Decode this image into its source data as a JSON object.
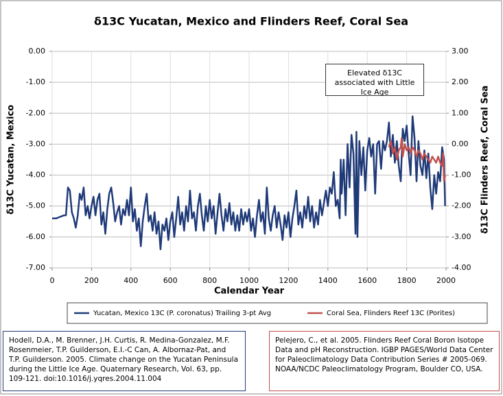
{
  "chart_data": {
    "type": "line",
    "title": "δ13C Yucatan, Mexico and Flinders Reef, Coral Sea",
    "x_label": "Calendar Year",
    "y_label": "δ13C Yucatan, Mexico",
    "y2_label": "δ13C Flinders Reef, Coral Sea",
    "annotation": "Elevated δ13C associated with Little Ice Age",
    "xlim": [
      0,
      2000
    ],
    "xticks": [
      0,
      200,
      400,
      600,
      800,
      1000,
      1200,
      1400,
      1600,
      1800,
      2000
    ],
    "ylim": [
      -7,
      0
    ],
    "yticks": [
      {
        "value": 0,
        "label": "0.00"
      },
      {
        "value": -1,
        "label": "-1.00"
      },
      {
        "value": -2,
        "label": "-2.00"
      },
      {
        "value": -3,
        "label": "-3.00"
      },
      {
        "value": -4,
        "label": "-4.00"
      },
      {
        "value": -5,
        "label": "-5.00"
      },
      {
        "value": -6,
        "label": "-6.00"
      },
      {
        "value": -7,
        "label": "-7.00"
      }
    ],
    "y2lim": [
      -4,
      3
    ],
    "y2ticks": [
      {
        "value": 3,
        "label": "3.00"
      },
      {
        "value": 2,
        "label": "2.00"
      },
      {
        "value": 1,
        "label": "1.00"
      },
      {
        "value": 0,
        "label": "0.00"
      },
      {
        "value": -1,
        "label": "-1.00"
      },
      {
        "value": -2,
        "label": "-2.00"
      },
      {
        "value": -3,
        "label": "-3.00"
      },
      {
        "value": -4,
        "label": "-4.00"
      }
    ],
    "grid": true,
    "series": [
      {
        "name": "Yucatan, Mexico 13C (P. coronatus) Trailing 3-pt Avg",
        "color": "#1f3a78",
        "axis": "y",
        "x": [
          0,
          20,
          40,
          60,
          70,
          80,
          90,
          100,
          110,
          120,
          130,
          140,
          150,
          160,
          170,
          180,
          190,
          200,
          210,
          220,
          230,
          240,
          250,
          260,
          270,
          280,
          290,
          300,
          310,
          320,
          330,
          340,
          350,
          360,
          370,
          380,
          390,
          400,
          410,
          420,
          430,
          440,
          450,
          460,
          470,
          480,
          490,
          500,
          510,
          520,
          530,
          540,
          550,
          560,
          570,
          580,
          590,
          600,
          610,
          620,
          630,
          640,
          650,
          660,
          670,
          680,
          690,
          700,
          710,
          720,
          730,
          740,
          750,
          760,
          770,
          780,
          790,
          800,
          810,
          820,
          830,
          840,
          850,
          860,
          870,
          880,
          890,
          900,
          910,
          920,
          930,
          940,
          950,
          960,
          970,
          980,
          990,
          1000,
          1010,
          1020,
          1030,
          1040,
          1050,
          1060,
          1070,
          1080,
          1090,
          1100,
          1110,
          1120,
          1130,
          1140,
          1150,
          1160,
          1170,
          1180,
          1190,
          1200,
          1210,
          1220,
          1230,
          1240,
          1250,
          1260,
          1270,
          1280,
          1290,
          1300,
          1310,
          1320,
          1330,
          1340,
          1350,
          1360,
          1370,
          1380,
          1390,
          1400,
          1410,
          1420,
          1430,
          1440,
          1450,
          1460,
          1465,
          1470,
          1480,
          1490,
          1500,
          1510,
          1520,
          1530,
          1540,
          1545,
          1550,
          1560,
          1570,
          1580,
          1590,
          1600,
          1610,
          1620,
          1630,
          1640,
          1650,
          1660,
          1670,
          1680,
          1690,
          1700,
          1710,
          1720,
          1730,
          1740,
          1750,
          1760,
          1770,
          1780,
          1790,
          1800,
          1810,
          1820,
          1830,
          1840,
          1850,
          1860,
          1870,
          1880,
          1890,
          1900,
          1910,
          1920,
          1930,
          1940,
          1950,
          1960,
          1970,
          1980,
          1990,
          1995
        ],
        "values": [
          -5.4,
          -5.4,
          -5.35,
          -5.3,
          -5.3,
          -4.4,
          -4.5,
          -5.2,
          -5.4,
          -5.7,
          -5.3,
          -4.6,
          -4.8,
          -4.4,
          -5.3,
          -5.0,
          -5.4,
          -5.0,
          -4.7,
          -5.3,
          -4.8,
          -4.6,
          -5.6,
          -5.2,
          -5.9,
          -5.1,
          -4.6,
          -4.4,
          -4.9,
          -5.5,
          -5.2,
          -5.0,
          -5.6,
          -5.1,
          -5.3,
          -4.8,
          -5.3,
          -4.4,
          -5.5,
          -5.1,
          -5.8,
          -5.4,
          -6.3,
          -5.5,
          -5.0,
          -4.6,
          -5.5,
          -5.3,
          -5.8,
          -5.2,
          -5.9,
          -5.5,
          -6.4,
          -5.6,
          -5.8,
          -5.4,
          -6.1,
          -5.5,
          -5.2,
          -6.0,
          -5.4,
          -4.7,
          -5.6,
          -5.2,
          -5.8,
          -5.0,
          -5.5,
          -4.5,
          -5.4,
          -5.2,
          -5.8,
          -5.0,
          -4.6,
          -5.3,
          -5.8,
          -5.0,
          -5.5,
          -4.8,
          -5.4,
          -5.0,
          -5.9,
          -5.2,
          -4.6,
          -5.3,
          -5.8,
          -5.1,
          -5.5,
          -4.9,
          -5.6,
          -5.2,
          -5.8,
          -5.3,
          -5.8,
          -5.1,
          -5.6,
          -5.2,
          -5.5,
          -5.1,
          -5.8,
          -5.4,
          -6.0,
          -5.3,
          -4.8,
          -5.5,
          -5.2,
          -5.9,
          -4.4,
          -5.4,
          -5.8,
          -5.3,
          -5.0,
          -5.7,
          -5.2,
          -5.6,
          -6.1,
          -5.3,
          -5.7,
          -5.2,
          -6.0,
          -5.4,
          -5.0,
          -4.5,
          -5.6,
          -5.2,
          -5.7,
          -5.0,
          -5.4,
          -4.7,
          -5.5,
          -5.0,
          -5.7,
          -5.2,
          -5.6,
          -4.8,
          -5.3,
          -4.9,
          -4.5,
          -5.0,
          -4.4,
          -4.6,
          -3.9,
          -5.0,
          -4.8,
          -5.4,
          -3.5,
          -4.6,
          -3.5,
          -5.3,
          -3.0,
          -4.4,
          -2.7,
          -3.3,
          -5.9,
          -2.6,
          -6.0,
          -2.9,
          -4.0,
          -3.1,
          -4.5,
          -3.2,
          -2.8,
          -3.4,
          -3.0,
          -4.6,
          -3.0,
          -2.9,
          -3.8,
          -2.9,
          -3.2,
          -2.9,
          -2.3,
          -3.4,
          -2.7,
          -3.6,
          -2.9,
          -3.7,
          -4.2,
          -2.5,
          -2.9,
          -2.4,
          -3.3,
          -4.0,
          -2.1,
          -2.8,
          -4.2,
          -2.9,
          -3.7,
          -4.0,
          -3.2,
          -4.1,
          -3.3,
          -4.4,
          -5.1,
          -4.0,
          -4.6,
          -3.9,
          -4.2,
          -3.1,
          -3.5,
          -5.0
        ]
      },
      {
        "name": "Coral Sea, Flinders Reef 13C (Porites)",
        "color": "#c0504d",
        "axis": "y2",
        "x": [
          1710,
          1720,
          1730,
          1740,
          1750,
          1760,
          1770,
          1775,
          1780,
          1790,
          1800,
          1810,
          1820,
          1830,
          1840,
          1850,
          1860,
          1870,
          1880,
          1890,
          1900,
          1910,
          1920,
          1930,
          1940,
          1950,
          1960,
          1970,
          1980,
          1985,
          1990,
          1995
        ],
        "values": [
          -0.1,
          0.1,
          -0.3,
          -0.1,
          -0.5,
          -0.2,
          -0.1,
          0.2,
          -0.4,
          0.0,
          -0.2,
          -0.1,
          -0.3,
          -0.1,
          -0.2,
          -0.4,
          -0.2,
          -0.3,
          -0.5,
          -0.3,
          -0.4,
          -0.5,
          -0.6,
          -0.4,
          -0.5,
          -0.6,
          -0.4,
          -0.6,
          -0.7,
          -0.3,
          -1.2,
          -1.0
        ]
      }
    ]
  },
  "sources": [
    "Hodell, D.A., M. Brenner, J.H. Curtis, R. Medina-Gonzalez, M.F. Rosenmeier, T.P. Guilderson, E.I.-C Can, A. Albornaz-Pat, and T.P. Guilderson.  2005. Climate change on the Yucatan Peninsula during the Little Ice Age. Quaternary Research, Vol. 63, pp. 109-121. doi:10.1016/j.yqres.2004.11.004",
    "Pelejero, C., et al.  2005. Flinders Reef Coral Boron Isotope Data and pH Reconstruction.  IGBP PAGES/World Data Center for Paleoclimatology  Data Contribution Series # 2005-069. NOAA/NCDC Paleoclimatology Program, Boulder CO, USA."
  ]
}
